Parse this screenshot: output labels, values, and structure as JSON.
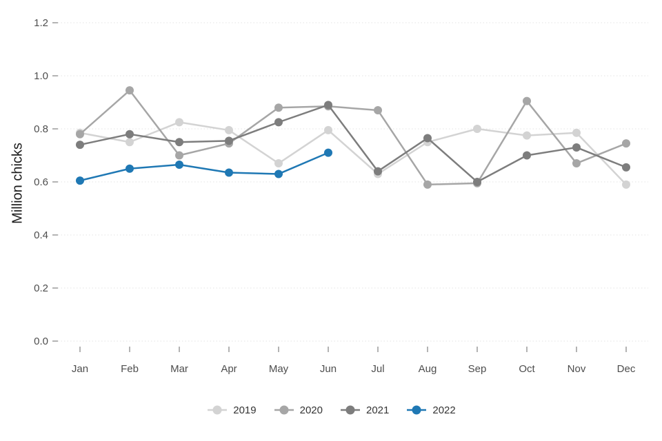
{
  "chart_data": {
    "type": "line",
    "title": "",
    "xlabel": "",
    "ylabel": "Million chicks",
    "ylim": [
      0,
      1.2
    ],
    "yticks": [
      0.0,
      0.2,
      0.4,
      0.6,
      0.8,
      1.0,
      1.2
    ],
    "grid": true,
    "legend_position": "bottom",
    "x": [
      "Jan",
      "Feb",
      "Mar",
      "Apr",
      "May",
      "Jun",
      "Jul",
      "Aug",
      "Sep",
      "Oct",
      "Nov",
      "Dec"
    ],
    "series": [
      {
        "name": "2019",
        "color": "#d3d3d3",
        "values": [
          0.785,
          0.75,
          0.825,
          0.795,
          0.67,
          0.795,
          0.63,
          0.75,
          0.8,
          0.775,
          0.785,
          0.59
        ]
      },
      {
        "name": "2020",
        "color": "#a6a6a6",
        "values": [
          0.78,
          0.945,
          0.7,
          0.745,
          0.88,
          0.885,
          0.87,
          0.59,
          0.595,
          0.905,
          0.67,
          0.745
        ]
      },
      {
        "name": "2021",
        "color": "#7d7d7d",
        "values": [
          0.74,
          0.78,
          0.75,
          0.755,
          0.825,
          0.89,
          0.64,
          0.765,
          0.6,
          0.7,
          0.73,
          0.655
        ]
      },
      {
        "name": "2022",
        "color": "#1f78b4",
        "values": [
          0.605,
          0.65,
          0.665,
          0.635,
          0.63,
          0.71
        ]
      }
    ],
    "axis_text_color": "#4d4d4d",
    "gridline_color": "#e3e3e3",
    "tick_color": "#8a8a8a"
  }
}
